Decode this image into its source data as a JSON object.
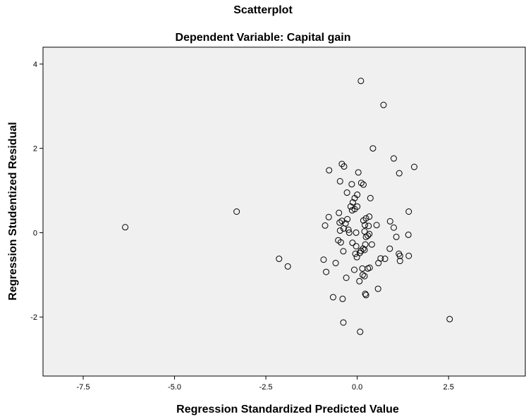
{
  "chart_data": {
    "type": "scatter",
    "title": "Scatterplot",
    "subtitle": "Dependent Variable: Capital gain",
    "xlabel": "Regression Standardized Predicted Value",
    "ylabel": "Regression Studentized Residual",
    "xlim": [
      -8.6,
      4.6
    ],
    "ylim": [
      -3.4,
      4.4
    ],
    "xticks": [
      -7.5,
      -5.0,
      -2.5,
      0.0,
      2.5
    ],
    "xtick_labels": [
      "-7.5",
      "-5.0",
      "-2.5",
      "0.0",
      "2.5"
    ],
    "yticks": [
      -2,
      0,
      2,
      4
    ],
    "ytick_labels": [
      "-2",
      "0",
      "2",
      "4"
    ],
    "grid": false,
    "colors": {
      "plot_background": "#f0f0f0",
      "marker_stroke": "#000000",
      "frame": "#000000"
    },
    "points": [
      {
        "x": 0.1,
        "y": 3.6
      },
      {
        "x": 0.72,
        "y": 3.03
      },
      {
        "x": 0.43,
        "y": 2.0
      },
      {
        "x": 1.0,
        "y": 1.76
      },
      {
        "x": 1.56,
        "y": 1.56
      },
      {
        "x": -0.42,
        "y": 1.63
      },
      {
        "x": -0.36,
        "y": 1.57
      },
      {
        "x": -0.77,
        "y": 1.48
      },
      {
        "x": 0.03,
        "y": 1.43
      },
      {
        "x": 1.15,
        "y": 1.41
      },
      {
        "x": -0.47,
        "y": 1.22
      },
      {
        "x": 0.11,
        "y": 1.18
      },
      {
        "x": 0.17,
        "y": 1.14
      },
      {
        "x": -0.15,
        "y": 1.15
      },
      {
        "x": -0.28,
        "y": 0.95
      },
      {
        "x": 0.0,
        "y": 0.9
      },
      {
        "x": -0.07,
        "y": 0.82
      },
      {
        "x": 0.36,
        "y": 0.82
      },
      {
        "x": -0.12,
        "y": 0.72
      },
      {
        "x": 0.0,
        "y": 0.62
      },
      {
        "x": -0.18,
        "y": 0.62
      },
      {
        "x": -0.07,
        "y": 0.56
      },
      {
        "x": -0.14,
        "y": 0.53
      },
      {
        "x": 1.41,
        "y": 0.5
      },
      {
        "x": -3.3,
        "y": 0.5
      },
      {
        "x": -0.5,
        "y": 0.47
      },
      {
        "x": 0.33,
        "y": 0.38
      },
      {
        "x": -0.78,
        "y": 0.37
      },
      {
        "x": 0.24,
        "y": 0.34
      },
      {
        "x": -0.27,
        "y": 0.32
      },
      {
        "x": 0.17,
        "y": 0.29
      },
      {
        "x": 0.9,
        "y": 0.27
      },
      {
        "x": -0.42,
        "y": 0.28
      },
      {
        "x": -0.48,
        "y": 0.24
      },
      {
        "x": -0.32,
        "y": 0.22
      },
      {
        "x": -0.88,
        "y": 0.17
      },
      {
        "x": 0.21,
        "y": 0.18
      },
      {
        "x": 0.53,
        "y": 0.18
      },
      {
        "x": 0.31,
        "y": 0.16
      },
      {
        "x": -6.35,
        "y": 0.13
      },
      {
        "x": 1.0,
        "y": 0.12
      },
      {
        "x": -0.37,
        "y": 0.1
      },
      {
        "x": -0.24,
        "y": 0.07
      },
      {
        "x": -0.47,
        "y": 0.05
      },
      {
        "x": 0.2,
        "y": 0.03
      },
      {
        "x": -0.03,
        "y": 0.0
      },
      {
        "x": -0.22,
        "y": 0.0
      },
      {
        "x": 0.33,
        "y": -0.03
      },
      {
        "x": 1.4,
        "y": -0.05
      },
      {
        "x": 0.29,
        "y": -0.07
      },
      {
        "x": 0.24,
        "y": -0.1
      },
      {
        "x": 1.07,
        "y": -0.1
      },
      {
        "x": -0.52,
        "y": -0.18
      },
      {
        "x": -0.45,
        "y": -0.23
      },
      {
        "x": -0.13,
        "y": -0.24
      },
      {
        "x": 0.4,
        "y": -0.28
      },
      {
        "x": 0.22,
        "y": -0.28
      },
      {
        "x": -0.03,
        "y": -0.32
      },
      {
        "x": 0.16,
        "y": -0.38
      },
      {
        "x": 0.2,
        "y": -0.41
      },
      {
        "x": 0.1,
        "y": -0.43
      },
      {
        "x": -0.38,
        "y": -0.44
      },
      {
        "x": 0.89,
        "y": -0.38
      },
      {
        "x": 0.07,
        "y": -0.48
      },
      {
        "x": 1.14,
        "y": -0.5
      },
      {
        "x": -0.05,
        "y": -0.5
      },
      {
        "x": 1.17,
        "y": -0.55
      },
      {
        "x": 1.41,
        "y": -0.55
      },
      {
        "x": -0.01,
        "y": -0.58
      },
      {
        "x": -2.14,
        "y": -0.62
      },
      {
        "x": -0.92,
        "y": -0.64
      },
      {
        "x": 0.76,
        "y": -0.62
      },
      {
        "x": 0.64,
        "y": -0.61
      },
      {
        "x": 1.17,
        "y": -0.67
      },
      {
        "x": -0.59,
        "y": -0.72
      },
      {
        "x": 0.58,
        "y": -0.72
      },
      {
        "x": -1.9,
        "y": -0.8
      },
      {
        "x": 0.34,
        "y": -0.83
      },
      {
        "x": 0.29,
        "y": -0.85
      },
      {
        "x": -0.08,
        "y": -0.88
      },
      {
        "x": 0.14,
        "y": -0.85
      },
      {
        "x": -0.85,
        "y": -0.93
      },
      {
        "x": 0.15,
        "y": -1.0
      },
      {
        "x": 0.2,
        "y": -1.03
      },
      {
        "x": -0.3,
        "y": -1.07
      },
      {
        "x": 0.06,
        "y": -1.15
      },
      {
        "x": 0.57,
        "y": -1.33
      },
      {
        "x": 0.22,
        "y": -1.45
      },
      {
        "x": 0.24,
        "y": -1.48
      },
      {
        "x": -0.66,
        "y": -1.53
      },
      {
        "x": -0.4,
        "y": -1.57
      },
      {
        "x": -0.38,
        "y": -2.13
      },
      {
        "x": 2.53,
        "y": -2.05
      },
      {
        "x": 0.08,
        "y": -2.35
      }
    ]
  }
}
